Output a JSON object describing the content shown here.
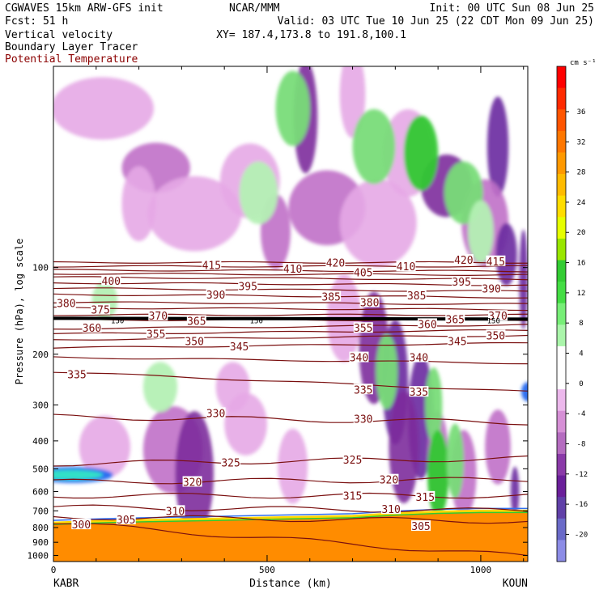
{
  "header": {
    "left": [
      "CGWAVES 15km ARW-GFS init",
      "Fcst:   51 h",
      "Vertical velocity",
      "Boundary Layer Tracer",
      "Potential Temperature"
    ],
    "center": "NCAR/MMM",
    "right_init": "Init: 00 UTC Sun 08 Jun 25",
    "right_valid": "Valid: 03 UTC Tue 10 Jun 25 (22 CDT Mon 09 Jun 25)",
    "right_xy": "XY= 187.4,173.8 to 191.8,100.1"
  },
  "colors": {
    "theta": "#7a0f0f",
    "tracer": "#ff8c00",
    "tracer_edge": "#ffd700",
    "pos": [
      "#b4f0b4",
      "#78dc78",
      "#32c832"
    ],
    "neg": [
      "#e6a8e6",
      "#c070c8",
      "#7d2d9c",
      "#6a2aa0"
    ],
    "accent_title": "#8b0000"
  },
  "chart_data": {
    "type": "cross-section",
    "xlabel": "Distance (km)",
    "ylabel": "Pressure (hPa), log scale",
    "x_range": [
      0,
      1110
    ],
    "y_range_hpa": [
      1050,
      20
    ],
    "y_scale": "log",
    "x_ticks": [
      0,
      500,
      1000
    ],
    "y_ticks": [
      100,
      200,
      300,
      400,
      500,
      600,
      700,
      800,
      900,
      1000
    ],
    "x_end_labels": [
      "KABR",
      "KOUN"
    ],
    "tropopause_label": "150",
    "theta_contours": [
      {
        "value": 300,
        "left_p": 770,
        "right_p": 1010
      },
      {
        "value": 305,
        "left_p": 735,
        "right_p": 760
      },
      {
        "value": 310,
        "left_p": 680,
        "right_p": 700
      },
      {
        "value": 315,
        "left_p": 620,
        "right_p": 620
      },
      {
        "value": 320,
        "left_p": 555,
        "right_p": 545
      },
      {
        "value": 325,
        "left_p": 480,
        "right_p": 460
      },
      {
        "value": 330,
        "left_p": 330,
        "right_p": 345
      },
      {
        "value": 335,
        "left_p": 230,
        "right_p": 270
      },
      {
        "value": 340,
        "left_p": 205,
        "right_p": 215
      },
      {
        "value": 345,
        "left_p": 190,
        "right_p": 183
      },
      {
        "value": 350,
        "left_p": 178,
        "right_p": 172
      },
      {
        "value": 355,
        "left_p": 170,
        "right_p": 165
      },
      {
        "value": 360,
        "left_p": 163,
        "right_p": 158
      },
      {
        "value": 365,
        "left_p": 152,
        "right_p": 152
      },
      {
        "value": 370,
        "left_p": 146,
        "right_p": 146
      },
      {
        "value": 375,
        "left_p": 138,
        "right_p": 140
      },
      {
        "value": 380,
        "left_p": 132,
        "right_p": 134
      },
      {
        "value": 385,
        "left_p": 124,
        "right_p": 127
      },
      {
        "value": 390,
        "left_p": 118,
        "right_p": 121
      },
      {
        "value": 395,
        "left_p": 113,
        "right_p": 115
      },
      {
        "value": 400,
        "left_p": 108,
        "right_p": 110
      },
      {
        "value": 405,
        "left_p": 105,
        "right_p": 106
      },
      {
        "value": 410,
        "left_p": 102,
        "right_p": 103
      },
      {
        "value": 415,
        "left_p": 99,
        "right_p": 99
      },
      {
        "value": 420,
        "left_p": 96,
        "right_p": 96
      }
    ],
    "theta_labels": [
      {
        "text": "300",
        "x": 65,
        "p": 780
      },
      {
        "text": "305",
        "x": 170,
        "p": 750
      },
      {
        "text": "310",
        "x": 285,
        "p": 700
      },
      {
        "text": "315",
        "x": 700,
        "p": 620
      },
      {
        "text": "315",
        "x": 870,
        "p": 625
      },
      {
        "text": "310",
        "x": 790,
        "p": 690
      },
      {
        "text": "305",
        "x": 860,
        "p": 790
      },
      {
        "text": "320",
        "x": 325,
        "p": 555
      },
      {
        "text": "320",
        "x": 785,
        "p": 545
      },
      {
        "text": "325",
        "x": 415,
        "p": 475
      },
      {
        "text": "325",
        "x": 700,
        "p": 465
      },
      {
        "text": "330",
        "x": 380,
        "p": 320
      },
      {
        "text": "330",
        "x": 725,
        "p": 335
      },
      {
        "text": "335",
        "x": 55,
        "p": 235
      },
      {
        "text": "335",
        "x": 725,
        "p": 265
      },
      {
        "text": "335",
        "x": 855,
        "p": 270
      },
      {
        "text": "340",
        "x": 715,
        "p": 205
      },
      {
        "text": "340",
        "x": 855,
        "p": 205
      },
      {
        "text": "345",
        "x": 435,
        "p": 188
      },
      {
        "text": "345",
        "x": 945,
        "p": 180
      },
      {
        "text": "350",
        "x": 330,
        "p": 180
      },
      {
        "text": "350",
        "x": 1035,
        "p": 172
      },
      {
        "text": "355",
        "x": 240,
        "p": 170
      },
      {
        "text": "355",
        "x": 725,
        "p": 162
      },
      {
        "text": "360",
        "x": 90,
        "p": 162
      },
      {
        "text": "360",
        "x": 875,
        "p": 157
      },
      {
        "text": "365",
        "x": 335,
        "p": 153
      },
      {
        "text": "365",
        "x": 940,
        "p": 151
      },
      {
        "text": "370",
        "x": 245,
        "p": 147
      },
      {
        "text": "370",
        "x": 1040,
        "p": 147
      },
      {
        "text": "375",
        "x": 110,
        "p": 140
      },
      {
        "text": "380",
        "x": 30,
        "p": 133
      },
      {
        "text": "380",
        "x": 740,
        "p": 132
      },
      {
        "text": "385",
        "x": 650,
        "p": 126
      },
      {
        "text": "385",
        "x": 850,
        "p": 125
      },
      {
        "text": "390",
        "x": 380,
        "p": 124
      },
      {
        "text": "390",
        "x": 1025,
        "p": 118
      },
      {
        "text": "395",
        "x": 455,
        "p": 116
      },
      {
        "text": "395",
        "x": 955,
        "p": 112
      },
      {
        "text": "400",
        "x": 135,
        "p": 111
      },
      {
        "text": "405",
        "x": 725,
        "p": 104
      },
      {
        "text": "410",
        "x": 560,
        "p": 101
      },
      {
        "text": "410",
        "x": 825,
        "p": 99
      },
      {
        "text": "415",
        "x": 370,
        "p": 98
      },
      {
        "text": "415",
        "x": 1035,
        "p": 95
      },
      {
        "text": "420",
        "x": 660,
        "p": 96
      },
      {
        "text": "420",
        "x": 960,
        "p": 94
      }
    ],
    "colorbar": {
      "units": "cm s⁻¹",
      "labels": [
        "36",
        "32",
        "28",
        "24",
        "20",
        "16",
        "12",
        "8",
        "4",
        "0",
        "-4",
        "-8",
        "-12",
        "-16",
        "-20"
      ],
      "colors": [
        "#ff0000",
        "#ff2a00",
        "#ff5500",
        "#ff7700",
        "#ff9900",
        "#ffbb00",
        "#ffdd00",
        "#e6ff00",
        "#99e600",
        "#33cc33",
        "#44dd44",
        "#77ee77",
        "#aaf5aa",
        "#ffffff",
        "#ffffff",
        "#ecb8ec",
        "#d690d6",
        "#b56cc0",
        "#8a3aa8",
        "#6a1f9a",
        "#6040a8",
        "#6a6ac8",
        "#8c8ce6"
      ]
    }
  }
}
